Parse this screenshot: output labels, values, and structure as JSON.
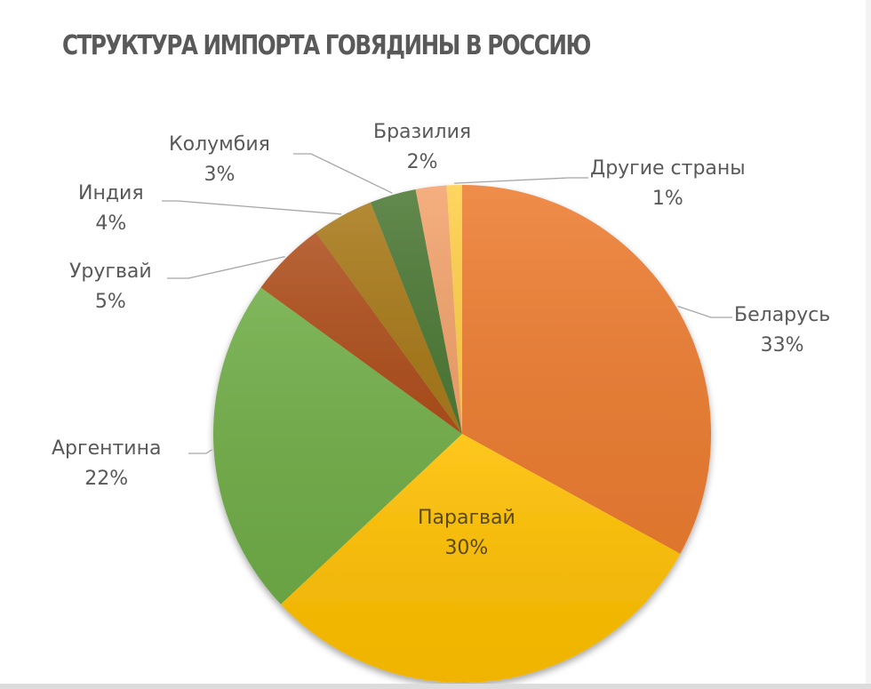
{
  "chart_data": {
    "type": "pie",
    "title": "СТРУКТУРА ИМПОРТА ГОВЯДИНЫ В РОССИЮ",
    "categories": [
      "Беларусь",
      "Парагвай",
      "Аргентина",
      "Уругвай",
      "Индия",
      "Колумбия",
      "Бразилия",
      "Другие страны"
    ],
    "values": [
      33,
      30,
      22,
      5,
      4,
      3,
      2,
      1
    ],
    "unit": "%",
    "start_angle": "12 o'clock, clockwise",
    "colors": [
      "#ED7D31",
      "#FFC000",
      "#70AD47",
      "#B0501E",
      "#A97A1A",
      "#4E7A37",
      "#F4A46E",
      "#FFD04A"
    ],
    "data_labels": [
      "Беларусь 33%",
      "Парагвай 30%",
      "Аргентина 22%",
      "Уругвай 5%",
      "Индия 4%",
      "Колумбия 3%",
      "Бразилия 2%",
      "Другие страны 1%"
    ],
    "legend": "none (data labels with leader lines)"
  },
  "labels": [
    {
      "name": "Беларусь",
      "pct": "33%"
    },
    {
      "name": "Парагвай",
      "pct": "30%"
    },
    {
      "name": "Аргентина",
      "pct": "22%"
    },
    {
      "name": "Уругвай",
      "pct": "5%"
    },
    {
      "name": "Индия",
      "pct": "4%"
    },
    {
      "name": "Колумбия",
      "pct": "3%"
    },
    {
      "name": "Бразилия",
      "pct": "2%"
    },
    {
      "name": "Другие страны",
      "pct": "1%"
    }
  ]
}
